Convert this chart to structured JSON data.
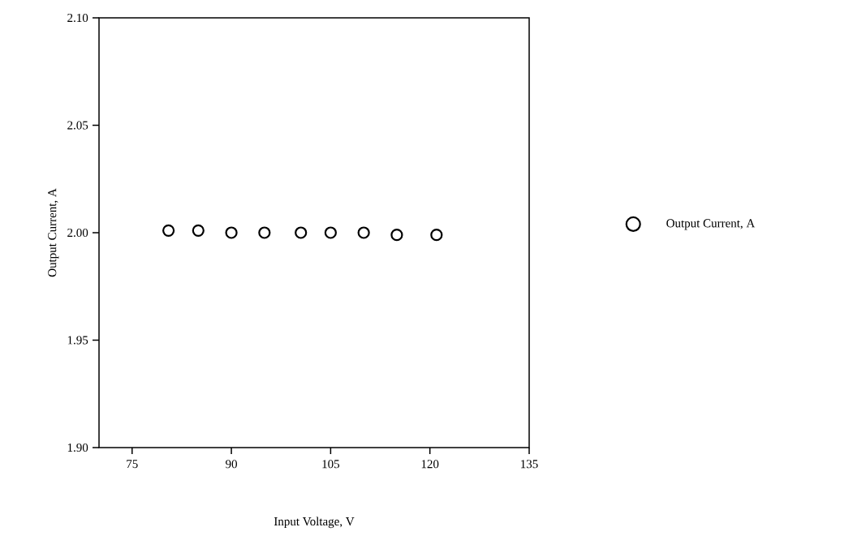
{
  "chart_data": {
    "type": "scatter",
    "xlabel": "Input Voltage, V",
    "ylabel": "Output Current, A",
    "x": [
      80.5,
      85,
      90,
      95,
      100.5,
      105,
      110,
      115,
      121
    ],
    "series": [
      {
        "name": "Output Current, A",
        "color": "#000000",
        "values": [
          2.001,
          2.001,
          2.0,
          2.0,
          2.0,
          2.0,
          2.0,
          1.999,
          1.999
        ]
      }
    ],
    "xlim": [
      70,
      135
    ],
    "xticks": [
      75,
      90,
      105,
      120,
      135
    ],
    "ylim": [
      1.9,
      2.1
    ],
    "yticks": [
      {
        "value": 1.9,
        "label": "1.90"
      },
      {
        "value": 1.95,
        "label": "1.95"
      },
      {
        "value": 2.0,
        "label": "2.00"
      },
      {
        "value": 2.05,
        "label": "2.05"
      },
      {
        "value": 2.1,
        "label": "2.10"
      }
    ],
    "grid": false,
    "legend": "right",
    "marker": "circle"
  }
}
